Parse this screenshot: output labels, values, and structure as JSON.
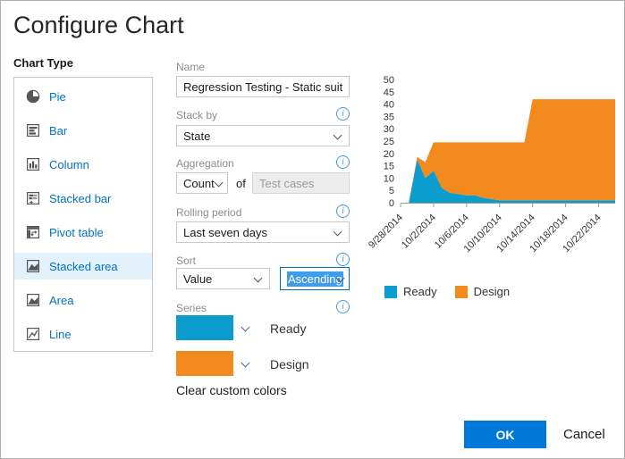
{
  "dialog": {
    "title": "Configure Chart"
  },
  "colors": {
    "accent": "#0078d7",
    "link": "#0072c6",
    "selection_highlight": "#3f9ceb",
    "series_ready": "#0d9cce",
    "series_design": "#f28a1e"
  },
  "chart_type": {
    "label": "Chart Type",
    "items": [
      {
        "label": "Pie",
        "icon": "pie-chart-icon",
        "selected": false
      },
      {
        "label": "Bar",
        "icon": "bar-chart-icon",
        "selected": false
      },
      {
        "label": "Column",
        "icon": "column-chart-icon",
        "selected": false
      },
      {
        "label": "Stacked bar",
        "icon": "stacked-bar-icon",
        "selected": false
      },
      {
        "label": "Pivot table",
        "icon": "pivot-table-icon",
        "selected": false
      },
      {
        "label": "Stacked area",
        "icon": "stacked-area-icon",
        "selected": true
      },
      {
        "label": "Area",
        "icon": "area-chart-icon",
        "selected": false
      },
      {
        "label": "Line",
        "icon": "line-chart-icon",
        "selected": false
      }
    ]
  },
  "form": {
    "name": {
      "label": "Name",
      "value": "Regression Testing - Static suite - Ch"
    },
    "stack_by": {
      "label": "Stack by",
      "value": "State"
    },
    "aggregation": {
      "label": "Aggregation",
      "operator": "Count",
      "of_label": "of",
      "field": "Test cases"
    },
    "rolling_period": {
      "label": "Rolling period",
      "value": "Last seven days"
    },
    "sort": {
      "label": "Sort",
      "field": "Value",
      "direction": "Ascending"
    },
    "series": {
      "label": "Series",
      "rows": [
        {
          "name": "Ready",
          "color": "#0d9cce"
        },
        {
          "name": "Design",
          "color": "#f28a1e"
        }
      ]
    },
    "clear_colors_label": "Clear custom colors"
  },
  "chart_data": {
    "type": "area",
    "stacked": true,
    "title": "",
    "xlabel": "",
    "ylabel": "",
    "ylim": [
      0,
      50
    ],
    "ytick_step": 5,
    "grid": false,
    "legend_position": "bottom",
    "x": [
      "9/28/2014",
      "9/29/2014",
      "9/30/2014",
      "10/1/2014",
      "10/2/2014",
      "10/3/2014",
      "10/4/2014",
      "10/5/2014",
      "10/6/2014",
      "10/7/2014",
      "10/8/2014",
      "10/9/2014",
      "10/10/2014",
      "10/11/2014",
      "10/12/2014",
      "10/13/2014",
      "10/14/2014",
      "10/15/2014",
      "10/16/2014",
      "10/17/2014",
      "10/18/2014",
      "10/19/2014",
      "10/20/2014",
      "10/21/2014",
      "10/22/2014",
      "10/23/2014",
      "10/24/2014"
    ],
    "xtick_indices": [
      0,
      4,
      8,
      12,
      16,
      20,
      24
    ],
    "xtick_labels": [
      "9/28/2014",
      "10/2/2014",
      "10/6/2014",
      "10/10/2014",
      "10/14/2014",
      "10/18/2014",
      "10/22/2014"
    ],
    "series": [
      {
        "name": "Ready",
        "color": "#0d9cce",
        "values": [
          0,
          0,
          17.5,
          10,
          13,
          6,
          4,
          3.5,
          3,
          3,
          2,
          1.5,
          1,
          1,
          1,
          1,
          1,
          1,
          1,
          1,
          1,
          1,
          1,
          1,
          1,
          1,
          1
        ]
      },
      {
        "name": "Design",
        "color": "#f28a1e",
        "values": [
          0,
          0,
          1,
          6.5,
          11.5,
          18.5,
          20.5,
          21,
          21.5,
          21.5,
          22.5,
          23,
          23.5,
          23.5,
          23.5,
          23.5,
          41,
          41,
          41,
          41,
          41,
          41,
          41,
          41,
          41,
          41,
          41
        ]
      }
    ]
  },
  "footer": {
    "ok_label": "OK",
    "cancel_label": "Cancel"
  }
}
